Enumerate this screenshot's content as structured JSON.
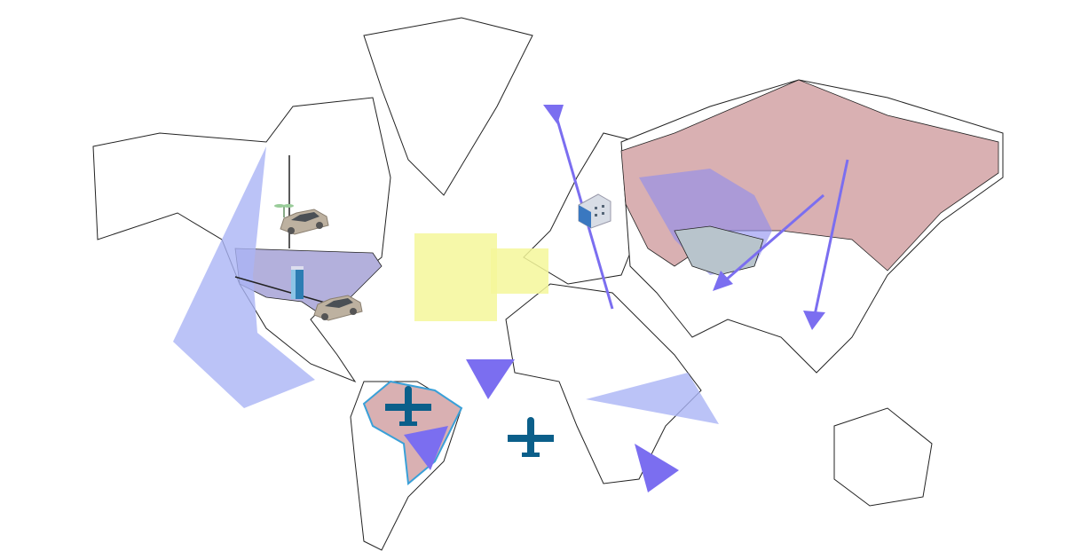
{
  "map": {
    "colors": {
      "land_stroke": "#222222",
      "land_fill": "#ffffff",
      "highlight_country": "#d9b0b2",
      "usa_fill": "#b3b0dc",
      "blue_overlay": "#8c8cf0",
      "light_blue": "#aab4f5",
      "yellow": "#f4f79a",
      "arrow": "#7b6ef0",
      "kazakhstan": "#b8c4cc",
      "brazil_border": "#3aa0d8",
      "plane": "#0b5f8a"
    },
    "icons": [
      "car-icon",
      "palm-tree-icon",
      "office-tower-icon",
      "building-icon",
      "airplane-icon"
    ]
  }
}
